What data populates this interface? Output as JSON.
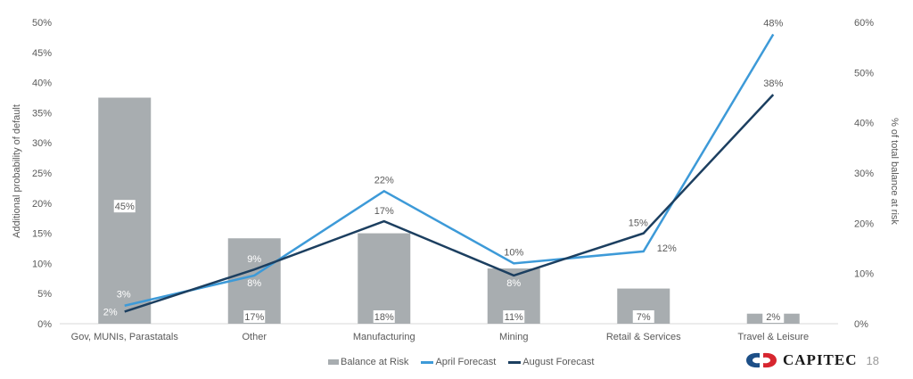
{
  "chart_data": {
    "type": "bar+line",
    "title": "",
    "categories": [
      "Gov, MUNIs, Parastatals",
      "Other",
      "Manufacturing",
      "Mining",
      "Retail & Services",
      "Travel & Leisure"
    ],
    "series": [
      {
        "name": "Balance at Risk",
        "type": "bar",
        "axis": "right",
        "color": "#a8adb0",
        "values": [
          45,
          17,
          18,
          11,
          7,
          2
        ],
        "labels": [
          "45%",
          "17%",
          "18%",
          "11%",
          "7%",
          "2%"
        ]
      },
      {
        "name": "April Forecast",
        "type": "line",
        "axis": "left",
        "color": "#3d9ad8",
        "values": [
          3,
          8,
          22,
          10,
          12,
          48
        ],
        "labels": [
          "3%",
          "8%",
          "22%",
          "10%",
          "12%",
          "48%"
        ]
      },
      {
        "name": "August Forecast",
        "type": "line",
        "axis": "left",
        "color": "#1c3f60",
        "values": [
          2,
          9,
          17,
          8,
          15,
          38
        ],
        "labels": [
          "2%",
          "9%",
          "17%",
          "8%",
          "15%",
          "38%"
        ]
      }
    ],
    "ylabel": "Additional probability of default",
    "y2label": "% of total balance at risk",
    "ylim": [
      0,
      50
    ],
    "y2lim": [
      0,
      60
    ],
    "yticks": [
      "0%",
      "5%",
      "10%",
      "15%",
      "20%",
      "25%",
      "30%",
      "35%",
      "40%",
      "45%",
      "50%"
    ],
    "y2ticks": [
      "0%",
      "10%",
      "20%",
      "30%",
      "40%",
      "50%",
      "60%"
    ],
    "grid": false,
    "legend_position": "bottom"
  },
  "legend": {
    "bar": "Balance at Risk",
    "april": "April Forecast",
    "august": "August Forecast"
  },
  "footer": {
    "brand": "CAPITEC",
    "page_number": "18"
  },
  "colors": {
    "bar": "#a8adb0",
    "april": "#3d9ad8",
    "august": "#1c3f60",
    "logo_blue": "#1d4f87",
    "logo_red": "#d7262f"
  }
}
